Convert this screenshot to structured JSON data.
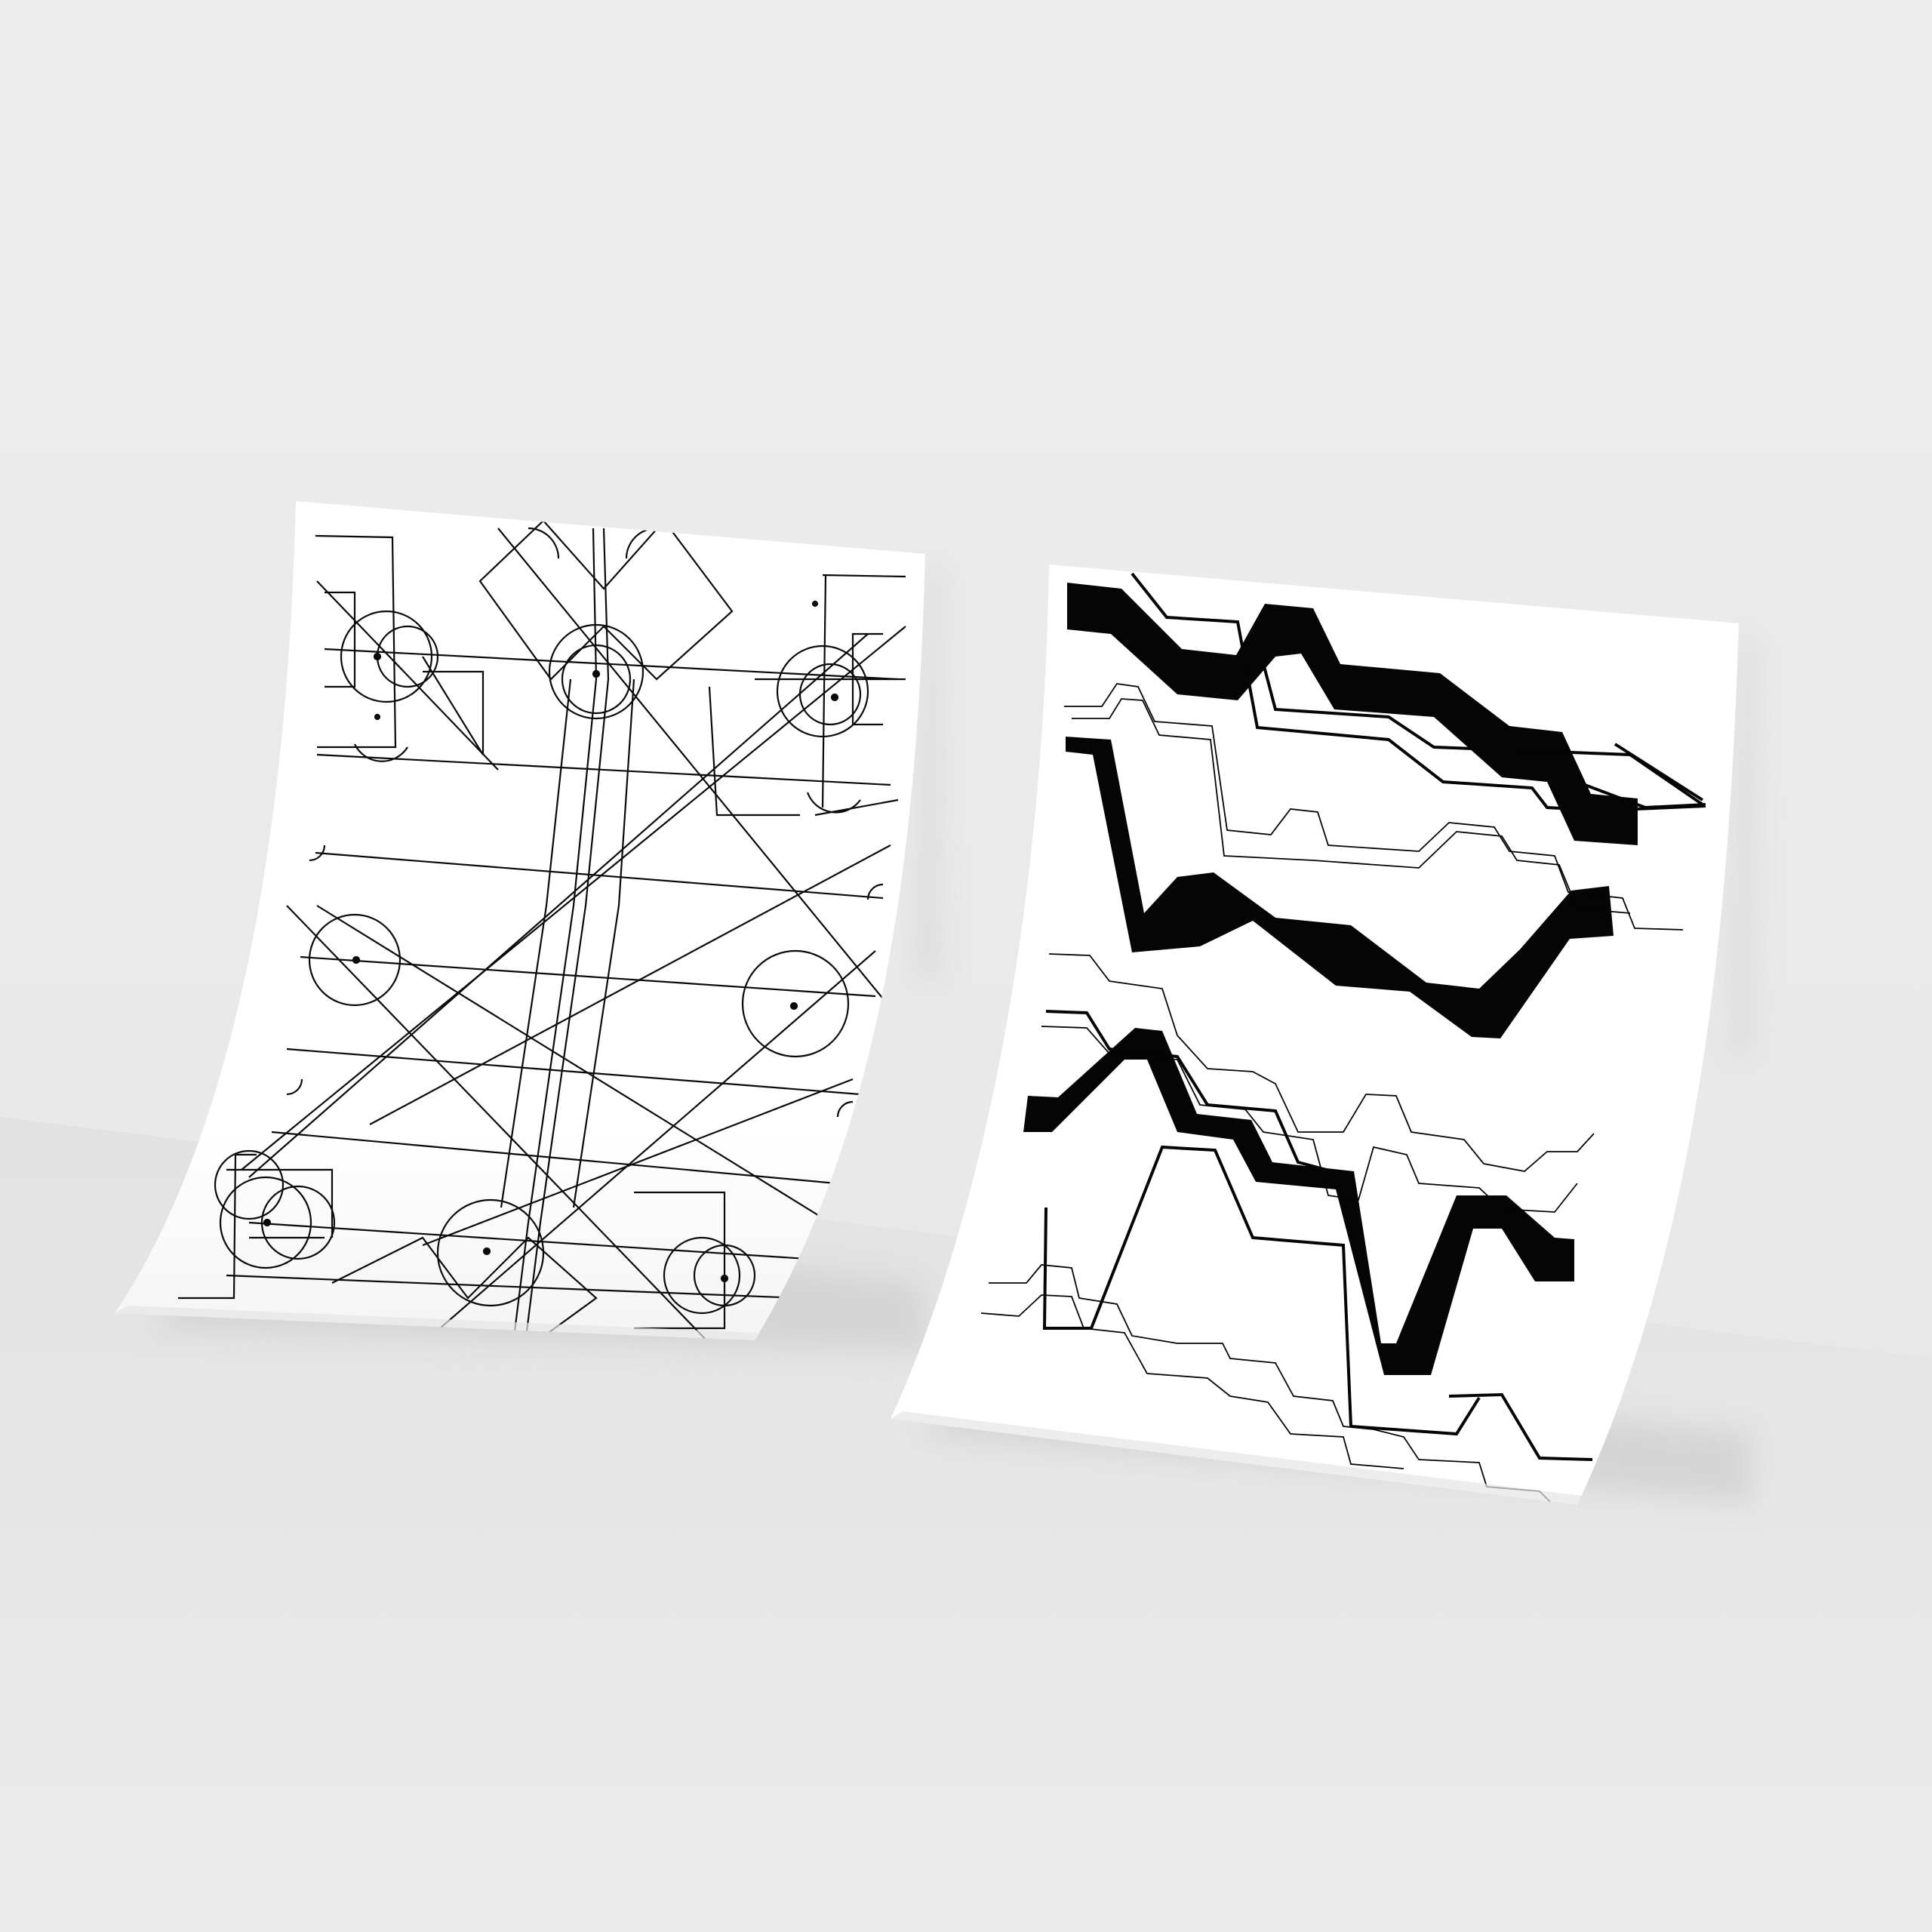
{
  "scene": {
    "subject": "two-poster-mockup",
    "colors": {
      "wall": "#ebebeb",
      "floor": "#e3e3e3",
      "paper": "#ffffff",
      "ink": "#0a0a0a",
      "shadow": "#c9c9c9"
    }
  },
  "posters": [
    {
      "id": "left",
      "artwork": "geometric-line-pattern-circles"
    },
    {
      "id": "right",
      "artwork": "stepped-zigzag-bands"
    }
  ]
}
